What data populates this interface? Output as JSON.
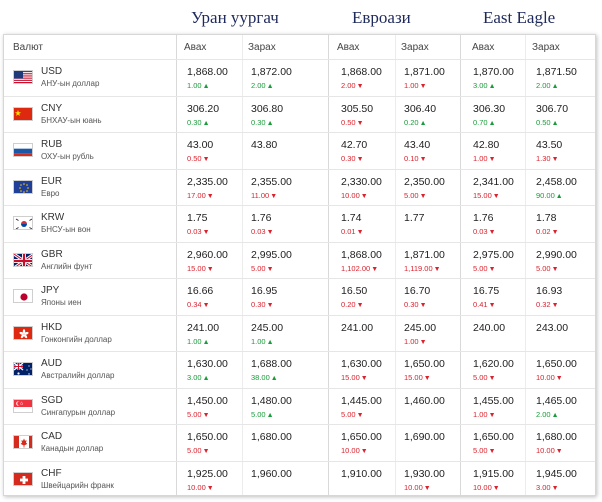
{
  "banks": [
    {
      "name": "Уран уургач"
    },
    {
      "name": "Евроази"
    },
    {
      "name": "East Eagle"
    }
  ],
  "headers": {
    "currency": "Валют",
    "buy": "Авах",
    "sell": "Зарах"
  },
  "rows": [
    {
      "code": "USD",
      "name": "АНУ-ын доллар",
      "flag": "usd",
      "cells": [
        {
          "v": "1,868.00",
          "c": "1.00",
          "d": "up"
        },
        {
          "v": "1,872.00",
          "c": "2.00",
          "d": "up"
        },
        {
          "v": "1,868.00",
          "c": "2.00",
          "d": "down"
        },
        {
          "v": "1,871.00",
          "c": "1.00",
          "d": "down"
        },
        {
          "v": "1,870.00",
          "c": "3.00",
          "d": "up"
        },
        {
          "v": "1,871.50",
          "c": "2.00",
          "d": "up"
        }
      ]
    },
    {
      "code": "CNY",
      "name": "БНХАУ-ын юань",
      "flag": "cny",
      "cells": [
        {
          "v": "306.20",
          "c": "0.30",
          "d": "up"
        },
        {
          "v": "306.80",
          "c": "0.30",
          "d": "up"
        },
        {
          "v": "305.50",
          "c": "0.50",
          "d": "down"
        },
        {
          "v": "306.40",
          "c": "0.20",
          "d": "up"
        },
        {
          "v": "306.30",
          "c": "0.70",
          "d": "up"
        },
        {
          "v": "306.70",
          "c": "0.50",
          "d": "up"
        }
      ]
    },
    {
      "code": "RUB",
      "name": "ОХУ-ын рубль",
      "flag": "rub",
      "cells": [
        {
          "v": "43.00",
          "c": "0.50",
          "d": "down"
        },
        {
          "v": "43.80",
          "c": "",
          "d": ""
        },
        {
          "v": "42.70",
          "c": "0.30",
          "d": "down"
        },
        {
          "v": "43.40",
          "c": "0.10",
          "d": "down"
        },
        {
          "v": "42.80",
          "c": "1.00",
          "d": "down"
        },
        {
          "v": "43.50",
          "c": "1.30",
          "d": "down"
        }
      ]
    },
    {
      "code": "EUR",
      "name": "Евро",
      "flag": "eur",
      "cells": [
        {
          "v": "2,335.00",
          "c": "17.00",
          "d": "down"
        },
        {
          "v": "2,355.00",
          "c": "11.00",
          "d": "down"
        },
        {
          "v": "2,330.00",
          "c": "10.00",
          "d": "down"
        },
        {
          "v": "2,350.00",
          "c": "5.00",
          "d": "down"
        },
        {
          "v": "2,341.00",
          "c": "15.00",
          "d": "down"
        },
        {
          "v": "2,458.00",
          "c": "90.00",
          "d": "up"
        }
      ]
    },
    {
      "code": "KRW",
      "name": "БНСУ-ын вон",
      "flag": "krw",
      "cells": [
        {
          "v": "1.75",
          "c": "0.03",
          "d": "down"
        },
        {
          "v": "1.76",
          "c": "0.03",
          "d": "down"
        },
        {
          "v": "1.74",
          "c": "0.01",
          "d": "down"
        },
        {
          "v": "1.77",
          "c": "",
          "d": ""
        },
        {
          "v": "1.76",
          "c": "0.03",
          "d": "down"
        },
        {
          "v": "1.78",
          "c": "0.02",
          "d": "down"
        }
      ]
    },
    {
      "code": "GBR",
      "name": "Английн фунт",
      "flag": "gbr",
      "cells": [
        {
          "v": "2,960.00",
          "c": "15.00",
          "d": "down"
        },
        {
          "v": "2,995.00",
          "c": "5.00",
          "d": "down"
        },
        {
          "v": "1,868.00",
          "c": "1,102.00",
          "d": "down"
        },
        {
          "v": "1,871.00",
          "c": "1,119.00",
          "d": "down"
        },
        {
          "v": "2,975.00",
          "c": "5.00",
          "d": "down"
        },
        {
          "v": "2,990.00",
          "c": "5.00",
          "d": "down"
        }
      ]
    },
    {
      "code": "JPY",
      "name": "Японы иен",
      "flag": "jpy",
      "cells": [
        {
          "v": "16.66",
          "c": "0.34",
          "d": "down"
        },
        {
          "v": "16.95",
          "c": "0.30",
          "d": "down"
        },
        {
          "v": "16.50",
          "c": "0.20",
          "d": "down"
        },
        {
          "v": "16.70",
          "c": "0.30",
          "d": "down"
        },
        {
          "v": "16.75",
          "c": "0.41",
          "d": "down"
        },
        {
          "v": "16.93",
          "c": "0.32",
          "d": "down"
        }
      ]
    },
    {
      "code": "HKD",
      "name": "Гонконгийн доллар",
      "flag": "hkd",
      "cells": [
        {
          "v": "241.00",
          "c": "1.00",
          "d": "up"
        },
        {
          "v": "245.00",
          "c": "1.00",
          "d": "up"
        },
        {
          "v": "241.00",
          "c": "",
          "d": ""
        },
        {
          "v": "245.00",
          "c": "1.00",
          "d": "down"
        },
        {
          "v": "240.00",
          "c": "",
          "d": ""
        },
        {
          "v": "243.00",
          "c": "",
          "d": ""
        }
      ]
    },
    {
      "code": "AUD",
      "name": "Австралийн доллар",
      "flag": "aud",
      "cells": [
        {
          "v": "1,630.00",
          "c": "3.00",
          "d": "up"
        },
        {
          "v": "1,688.00",
          "c": "38.00",
          "d": "up"
        },
        {
          "v": "1,630.00",
          "c": "15.00",
          "d": "down"
        },
        {
          "v": "1,650.00",
          "c": "15.00",
          "d": "down"
        },
        {
          "v": "1,620.00",
          "c": "5.00",
          "d": "down"
        },
        {
          "v": "1,650.00",
          "c": "10.00",
          "d": "down"
        }
      ]
    },
    {
      "code": "SGD",
      "name": "Сингапурын доллар",
      "flag": "sgd",
      "cells": [
        {
          "v": "1,450.00",
          "c": "5.00",
          "d": "down"
        },
        {
          "v": "1,480.00",
          "c": "5.00",
          "d": "up"
        },
        {
          "v": "1,445.00",
          "c": "5.00",
          "d": "down"
        },
        {
          "v": "1,460.00",
          "c": "",
          "d": ""
        },
        {
          "v": "1,455.00",
          "c": "1.00",
          "d": "down"
        },
        {
          "v": "1,465.00",
          "c": "2.00",
          "d": "up"
        }
      ]
    },
    {
      "code": "CAD",
      "name": "Канадын доллар",
      "flag": "cad",
      "cells": [
        {
          "v": "1,650.00",
          "c": "5.00",
          "d": "down"
        },
        {
          "v": "1,680.00",
          "c": "",
          "d": ""
        },
        {
          "v": "1,650.00",
          "c": "10.00",
          "d": "down"
        },
        {
          "v": "1,690.00",
          "c": "",
          "d": ""
        },
        {
          "v": "1,650.00",
          "c": "5.00",
          "d": "down"
        },
        {
          "v": "1,680.00",
          "c": "10.00",
          "d": "down"
        }
      ]
    },
    {
      "code": "CHF",
      "name": "Швейцарийн франк",
      "flag": "chf",
      "cells": [
        {
          "v": "1,925.00",
          "c": "10.00",
          "d": "down"
        },
        {
          "v": "1,960.00",
          "c": "",
          "d": ""
        },
        {
          "v": "1,910.00",
          "c": "",
          "d": ""
        },
        {
          "v": "1,930.00",
          "c": "10.00",
          "d": "down"
        },
        {
          "v": "1,915.00",
          "c": "10.00",
          "d": "down"
        },
        {
          "v": "1,945.00",
          "c": "3.00",
          "d": "down"
        }
      ]
    }
  ],
  "colors": {
    "up": "#1a9c3a",
    "down": "#d9232e",
    "title": "#1f2a5c"
  }
}
